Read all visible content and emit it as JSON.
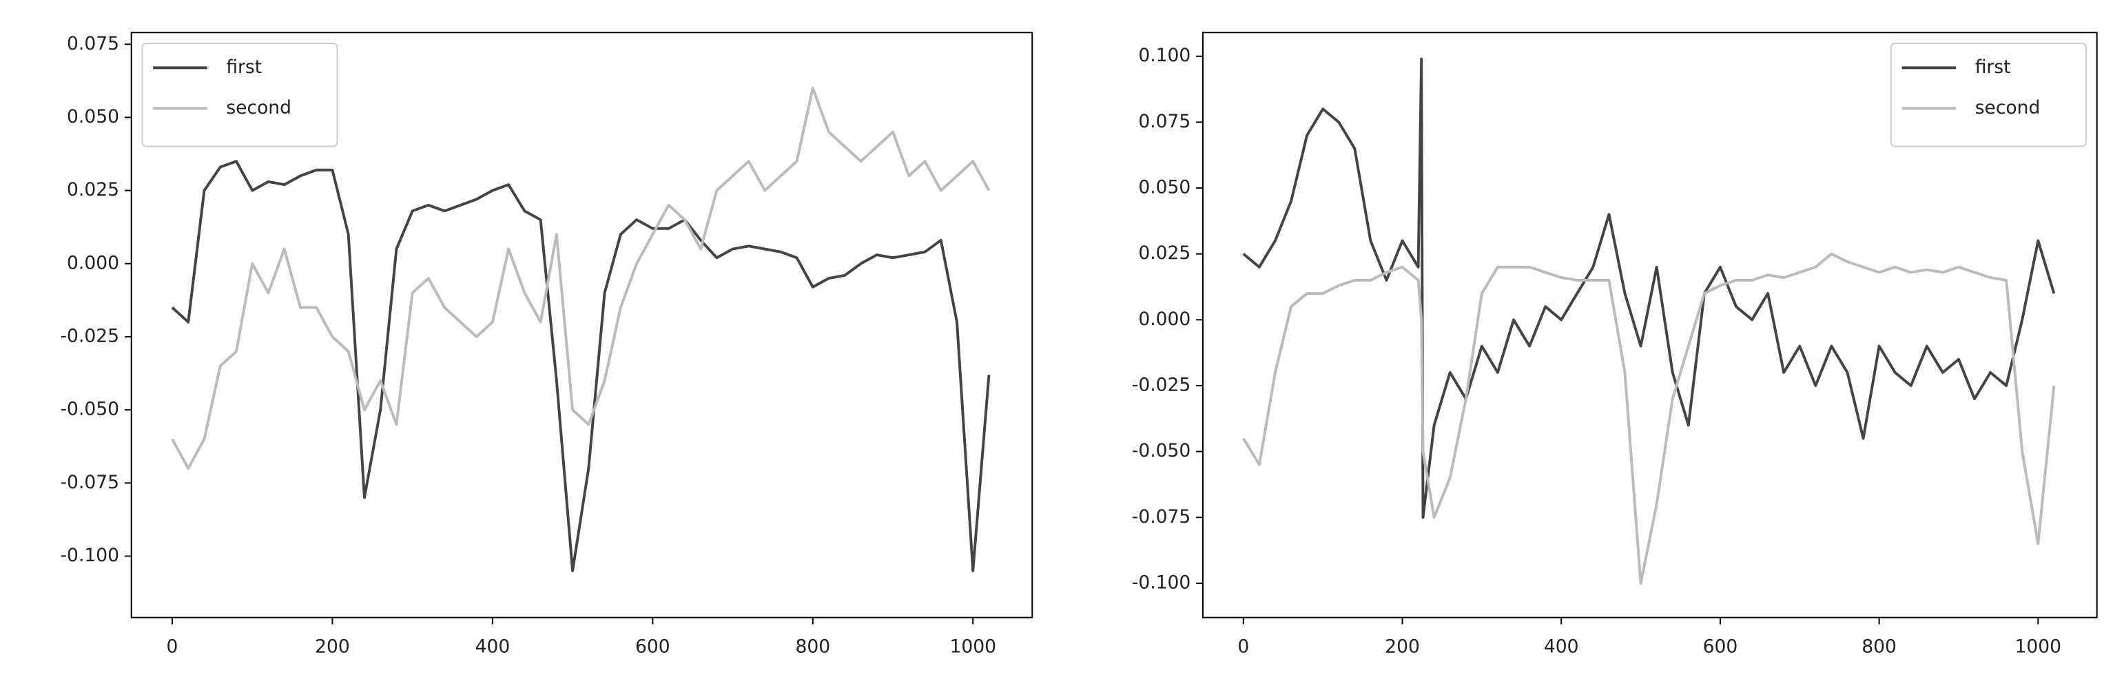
{
  "chart_data": [
    {
      "type": "line",
      "x": [
        0,
        20,
        40,
        60,
        80,
        100,
        120,
        140,
        160,
        180,
        200,
        220,
        240,
        260,
        280,
        300,
        320,
        340,
        360,
        380,
        400,
        420,
        440,
        460,
        480,
        500,
        520,
        540,
        560,
        580,
        600,
        620,
        640,
        660,
        680,
        700,
        720,
        740,
        760,
        780,
        800,
        820,
        840,
        860,
        880,
        900,
        920,
        940,
        960,
        980,
        1000,
        1020
      ],
      "series": [
        {
          "name": "first",
          "color": "#444444",
          "values": [
            -0.015,
            -0.02,
            0.025,
            0.033,
            0.035,
            0.025,
            0.028,
            0.027,
            0.03,
            0.032,
            0.032,
            0.01,
            -0.08,
            -0.05,
            0.005,
            0.018,
            0.02,
            0.018,
            0.02,
            0.022,
            0.025,
            0.027,
            0.018,
            0.015,
            -0.04,
            -0.105,
            -0.07,
            -0.01,
            0.01,
            0.015,
            0.012,
            0.012,
            0.015,
            0.008,
            0.002,
            0.005,
            0.006,
            0.005,
            0.004,
            0.002,
            -0.008,
            -0.005,
            -0.004,
            0.0,
            0.003,
            0.002,
            0.003,
            0.004,
            0.008,
            -0.02,
            -0.105,
            -0.038
          ]
        },
        {
          "name": "second",
          "color": "#bbbbbb",
          "values": [
            -0.06,
            -0.07,
            -0.06,
            -0.035,
            -0.03,
            0.0,
            -0.01,
            0.005,
            -0.015,
            -0.015,
            -0.025,
            -0.03,
            -0.05,
            -0.04,
            -0.055,
            -0.01,
            -0.005,
            -0.015,
            -0.02,
            -0.025,
            -0.02,
            0.005,
            -0.01,
            -0.02,
            0.01,
            -0.05,
            -0.055,
            -0.04,
            -0.015,
            0.0,
            0.01,
            0.02,
            0.015,
            0.005,
            0.025,
            0.03,
            0.035,
            0.025,
            0.03,
            0.035,
            0.06,
            0.045,
            0.04,
            0.035,
            0.04,
            0.045,
            0.03,
            0.035,
            0.025,
            0.03,
            0.035,
            0.025
          ]
        }
      ],
      "xlim": [
        -51,
        1074
      ],
      "ylim": [
        -0.121,
        0.079
      ],
      "xticks": [
        0,
        200,
        400,
        600,
        800,
        1000
      ],
      "yticks": [
        {
          "value": -0.1,
          "label": "-0.100"
        },
        {
          "value": -0.075,
          "label": "-0.075"
        },
        {
          "value": -0.05,
          "label": "-0.050"
        },
        {
          "value": -0.025,
          "label": "-0.025"
        },
        {
          "value": 0,
          "label": "0.000"
        },
        {
          "value": 0.025,
          "label": "0.025"
        },
        {
          "value": 0.05,
          "label": "0.050"
        },
        {
          "value": 0.075,
          "label": "0.075"
        }
      ],
      "legend": "upper left"
    },
    {
      "type": "line",
      "x": [
        0,
        20,
        40,
        60,
        80,
        100,
        120,
        140,
        160,
        180,
        200,
        220,
        224,
        226,
        240,
        260,
        280,
        300,
        320,
        340,
        360,
        380,
        400,
        420,
        440,
        460,
        480,
        500,
        520,
        540,
        560,
        580,
        600,
        620,
        640,
        660,
        680,
        700,
        720,
        740,
        760,
        780,
        800,
        820,
        840,
        860,
        880,
        900,
        920,
        940,
        960,
        980,
        1000,
        1020
      ],
      "series": [
        {
          "name": "first",
          "color": "#444444",
          "values": [
            0.025,
            0.02,
            0.03,
            0.045,
            0.07,
            0.08,
            0.075,
            0.065,
            0.03,
            0.015,
            0.03,
            0.02,
            0.099,
            -0.075,
            -0.04,
            -0.02,
            -0.03,
            -0.01,
            -0.02,
            0.0,
            -0.01,
            0.005,
            0.0,
            0.01,
            0.02,
            0.04,
            0.01,
            -0.01,
            0.02,
            -0.02,
            -0.04,
            0.01,
            0.02,
            0.005,
            0.0,
            0.01,
            -0.02,
            -0.01,
            -0.025,
            -0.01,
            -0.02,
            -0.045,
            -0.01,
            -0.02,
            -0.025,
            -0.01,
            -0.02,
            -0.015,
            -0.03,
            -0.02,
            -0.025,
            0.0,
            0.03,
            0.01
          ]
        },
        {
          "name": "second",
          "color": "#bbbbbb",
          "values": [
            -0.045,
            -0.055,
            -0.02,
            0.005,
            0.01,
            0.01,
            0.013,
            0.015,
            0.015,
            0.018,
            0.02,
            0.015,
            0.0,
            -0.05,
            -0.075,
            -0.06,
            -0.03,
            0.01,
            0.02,
            0.02,
            0.02,
            0.018,
            0.016,
            0.015,
            0.015,
            0.015,
            -0.02,
            -0.1,
            -0.07,
            -0.03,
            -0.01,
            0.01,
            0.013,
            0.015,
            0.015,
            0.017,
            0.016,
            0.018,
            0.02,
            0.025,
            0.022,
            0.02,
            0.018,
            0.02,
            0.018,
            0.019,
            0.018,
            0.02,
            0.018,
            0.016,
            0.015,
            -0.05,
            -0.085,
            -0.025
          ]
        }
      ],
      "xlim": [
        -51,
        1074
      ],
      "ylim": [
        -0.113,
        0.109
      ],
      "xticks": [
        0,
        200,
        400,
        600,
        800,
        1000
      ],
      "yticks": [
        {
          "value": -0.1,
          "label": "-0.100"
        },
        {
          "value": -0.075,
          "label": "-0.075"
        },
        {
          "value": -0.05,
          "label": "-0.050"
        },
        {
          "value": -0.025,
          "label": "-0.025"
        },
        {
          "value": 0,
          "label": "0.000"
        },
        {
          "value": 0.025,
          "label": "0.025"
        },
        {
          "value": 0.05,
          "label": "0.050"
        },
        {
          "value": 0.075,
          "label": "0.075"
        },
        {
          "value": 0.1,
          "label": "0.100"
        }
      ],
      "legend": "upper right"
    }
  ]
}
